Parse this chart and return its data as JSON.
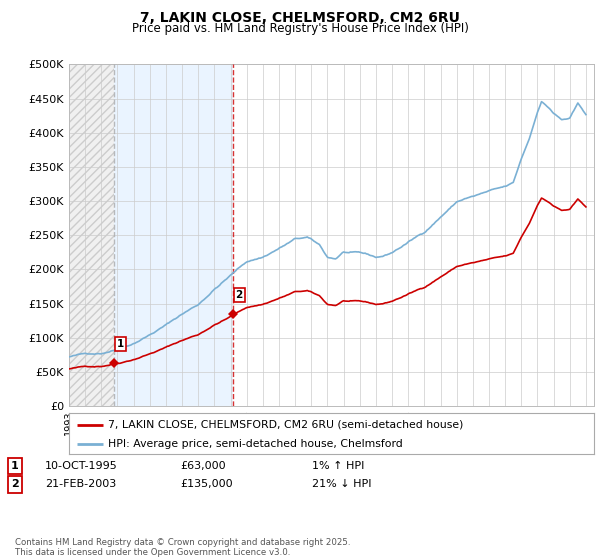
{
  "title": "7, LAKIN CLOSE, CHELMSFORD, CM2 6RU",
  "subtitle": "Price paid vs. HM Land Registry's House Price Index (HPI)",
  "ylim": [
    0,
    500000
  ],
  "yticks": [
    0,
    50000,
    100000,
    150000,
    200000,
    250000,
    300000,
    350000,
    400000,
    450000,
    500000
  ],
  "ytick_labels": [
    "£0",
    "£50K",
    "£100K",
    "£150K",
    "£200K",
    "£250K",
    "£300K",
    "£350K",
    "£400K",
    "£450K",
    "£500K"
  ],
  "xmin": 1993.0,
  "xmax": 2025.5,
  "sale1_date": 1995.78,
  "sale1_price": 63000,
  "sale2_date": 2003.13,
  "sale2_price": 135000,
  "property_color": "#cc0000",
  "hpi_color": "#7ab0d4",
  "vline1_color": "#aaaaaa",
  "vline2_color": "#cc0000",
  "shade_color": "#ddeeff",
  "hatch_color": "#e0e0e0",
  "legend_property": "7, LAKIN CLOSE, CHELMSFORD, CM2 6RU (semi-detached house)",
  "legend_hpi": "HPI: Average price, semi-detached house, Chelmsford",
  "ann1_label": "1",
  "ann1_date": "10-OCT-1995",
  "ann1_price": "£63,000",
  "ann1_hpi": "1% ↑ HPI",
  "ann2_label": "2",
  "ann2_date": "21-FEB-2003",
  "ann2_price": "£135,000",
  "ann2_hpi": "21% ↓ HPI",
  "footer": "Contains HM Land Registry data © Crown copyright and database right 2025.\nThis data is licensed under the Open Government Licence v3.0.",
  "bg_color": "#ffffff",
  "grid_color": "#cccccc"
}
